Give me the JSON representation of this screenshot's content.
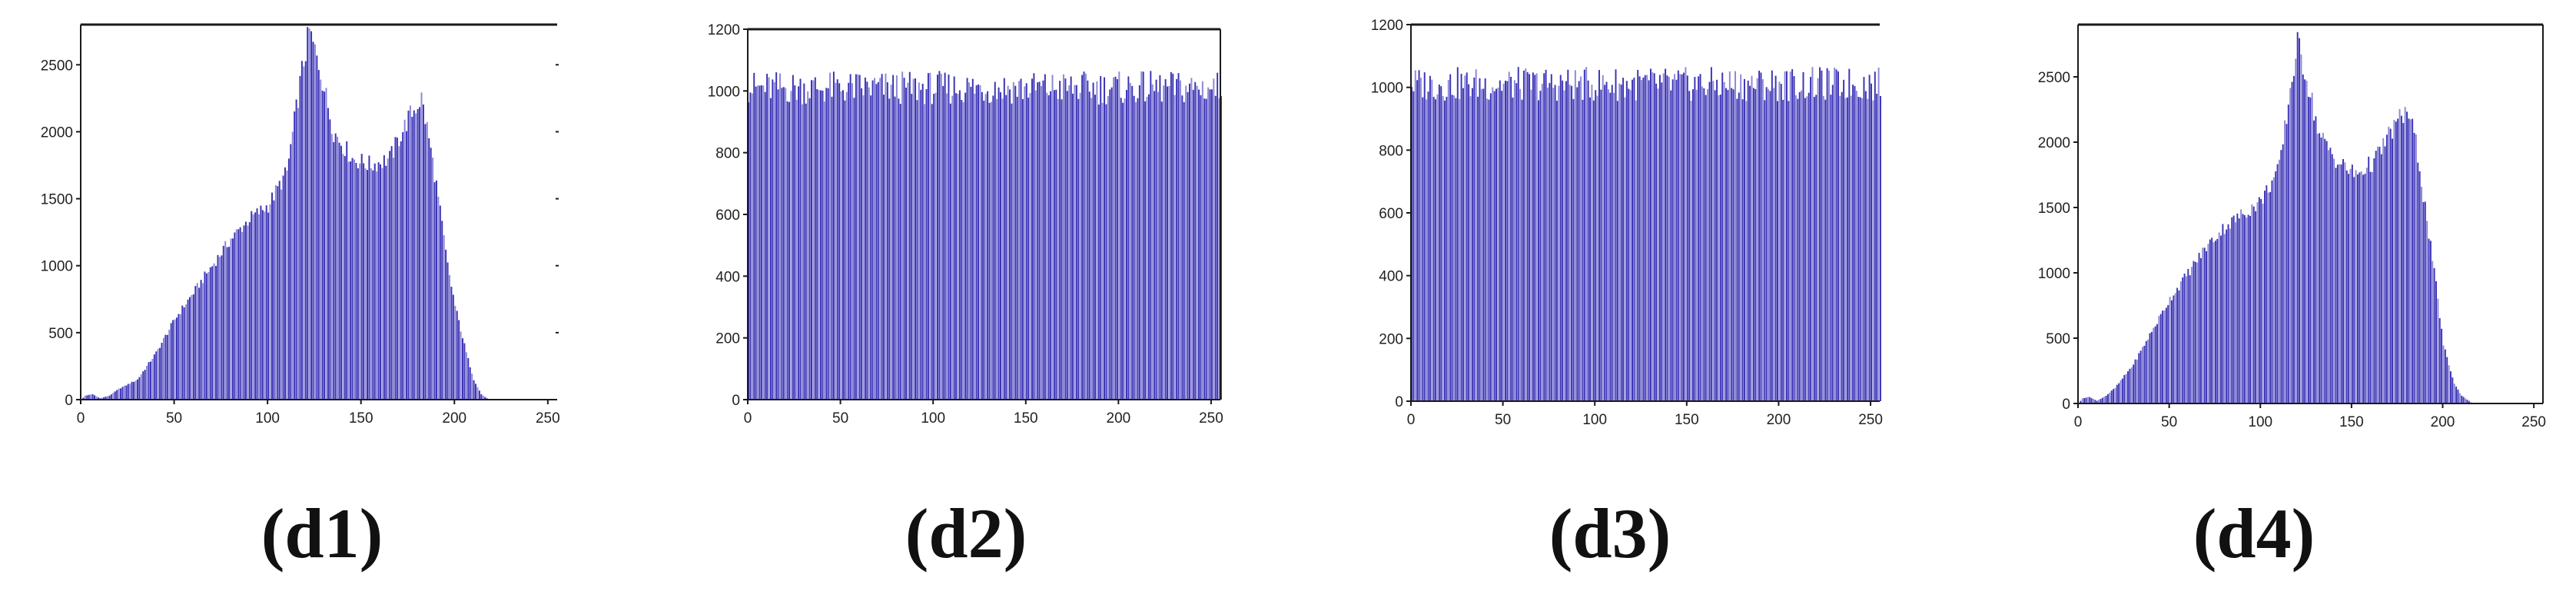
{
  "colors": {
    "bar": "#3b33b5",
    "bar_light": "#8d88d8",
    "axis": "#1a1a1a"
  },
  "panels": [
    {
      "label": "(d1)",
      "chart_data": {
        "type": "bar",
        "title": "",
        "xlabel": "",
        "ylabel": "",
        "xlim": [
          0,
          255
        ],
        "ylim": [
          0,
          2800
        ],
        "xticks": [
          0,
          50,
          100,
          150,
          200,
          250
        ],
        "yticks": [
          0,
          500,
          1000,
          1500,
          2000,
          2500
        ],
        "frame": "partial",
        "grid": false,
        "profile": [
          [
            0,
            0
          ],
          [
            2,
            30
          ],
          [
            6,
            40
          ],
          [
            10,
            10
          ],
          [
            15,
            30
          ],
          [
            20,
            80
          ],
          [
            30,
            150
          ],
          [
            40,
            350
          ],
          [
            50,
            600
          ],
          [
            60,
            800
          ],
          [
            70,
            1000
          ],
          [
            80,
            1200
          ],
          [
            90,
            1350
          ],
          [
            100,
            1450
          ],
          [
            110,
            1700
          ],
          [
            118,
            2450
          ],
          [
            122,
            2750
          ],
          [
            128,
            2450
          ],
          [
            135,
            2000
          ],
          [
            145,
            1800
          ],
          [
            155,
            1750
          ],
          [
            165,
            1800
          ],
          [
            175,
            2100
          ],
          [
            182,
            2250
          ],
          [
            186,
            1950
          ],
          [
            190,
            1600
          ],
          [
            196,
            1000
          ],
          [
            200,
            700
          ],
          [
            206,
            350
          ],
          [
            210,
            150
          ],
          [
            214,
            40
          ],
          [
            218,
            0
          ],
          [
            255,
            0
          ]
        ]
      }
    },
    {
      "label": "(d2)",
      "chart_data": {
        "type": "bar",
        "title": "",
        "xlabel": "",
        "ylabel": "",
        "xlim": [
          0,
          255
        ],
        "ylim": [
          0,
          1200
        ],
        "xticks": [
          0,
          50,
          100,
          150,
          200,
          250
        ],
        "yticks": [
          0,
          200,
          400,
          600,
          800,
          1000,
          1200
        ],
        "frame": "box",
        "grid": false,
        "profile": [
          [
            0,
            1010
          ],
          [
            255,
            1010
          ]
        ]
      }
    },
    {
      "label": "(d3)",
      "chart_data": {
        "type": "bar",
        "title": "",
        "xlabel": "",
        "ylabel": "",
        "xlim": [
          0,
          255
        ],
        "ylim": [
          0,
          1200
        ],
        "xticks": [
          0,
          50,
          100,
          150,
          200,
          250
        ],
        "yticks": [
          0,
          200,
          400,
          600,
          800,
          1000,
          1200
        ],
        "frame": "partial",
        "grid": false,
        "profile": [
          [
            0,
            1010
          ],
          [
            255,
            1010
          ]
        ]
      }
    },
    {
      "label": "(d4)",
      "chart_data": {
        "type": "bar",
        "title": "",
        "xlabel": "",
        "ylabel": "",
        "xlim": [
          0,
          255
        ],
        "ylim": [
          0,
          2900
        ],
        "xticks": [
          0,
          50,
          100,
          150,
          200,
          250
        ],
        "yticks": [
          0,
          500,
          1000,
          1500,
          2000,
          2500
        ],
        "frame": "box",
        "grid": false,
        "profile": [
          [
            0,
            0
          ],
          [
            2,
            40
          ],
          [
            6,
            50
          ],
          [
            10,
            20
          ],
          [
            15,
            60
          ],
          [
            20,
            120
          ],
          [
            30,
            300
          ],
          [
            40,
            550
          ],
          [
            50,
            800
          ],
          [
            60,
            1000
          ],
          [
            70,
            1200
          ],
          [
            80,
            1350
          ],
          [
            90,
            1450
          ],
          [
            100,
            1550
          ],
          [
            110,
            1800
          ],
          [
            116,
            2400
          ],
          [
            120,
            2750
          ],
          [
            125,
            2500
          ],
          [
            132,
            2050
          ],
          [
            142,
            1850
          ],
          [
            152,
            1750
          ],
          [
            162,
            1850
          ],
          [
            172,
            2100
          ],
          [
            180,
            2250
          ],
          [
            185,
            2000
          ],
          [
            190,
            1500
          ],
          [
            196,
            900
          ],
          [
            200,
            450
          ],
          [
            206,
            150
          ],
          [
            210,
            60
          ],
          [
            216,
            0
          ],
          [
            255,
            0
          ]
        ]
      }
    }
  ]
}
